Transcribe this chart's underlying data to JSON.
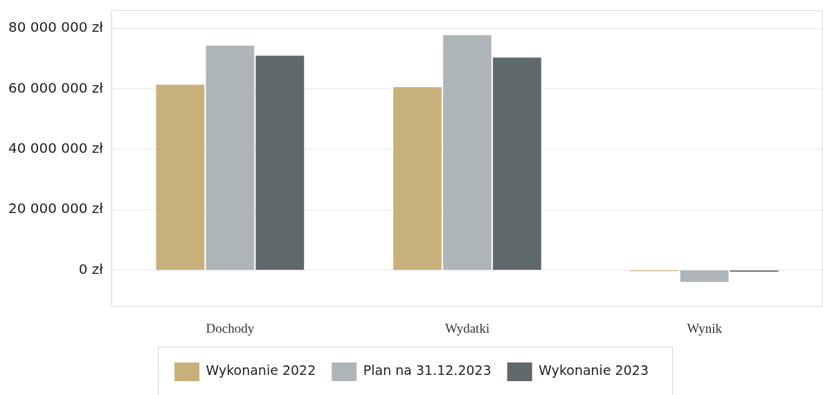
{
  "chart_data": {
    "type": "bar",
    "categories": [
      "Dochody",
      "Wydatki",
      "Wynik"
    ],
    "series": [
      {
        "name": "Wykonanie 2022",
        "color": "#c8b07b",
        "values": [
          61400000,
          60600000,
          -300000
        ]
      },
      {
        "name": "Plan na 31.12.2023",
        "color": "#aeb5b8",
        "values": [
          74300000,
          77800000,
          -3900000
        ]
      },
      {
        "name": "Wykonanie 2023",
        "color": "#5f686b",
        "values": [
          71000000,
          70400000,
          -500000
        ]
      }
    ],
    "ylim": [
      -12000000,
      86000000
    ],
    "yticks": [
      {
        "value": 0,
        "label": "0 zł"
      },
      {
        "value": 20000000,
        "label": "20 000 000 zł"
      },
      {
        "value": 40000000,
        "label": "40 000 000 zł"
      },
      {
        "value": 60000000,
        "label": "60 000 000 zł"
      },
      {
        "value": 80000000,
        "label": "80 000 000 zł"
      }
    ],
    "grid": "y",
    "legend": "bottom"
  }
}
